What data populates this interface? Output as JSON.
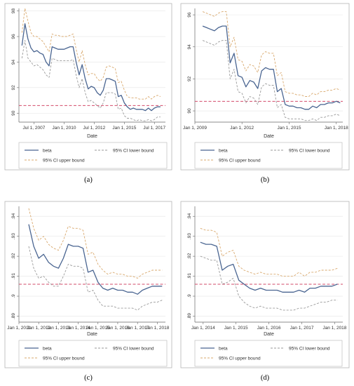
{
  "chart_data": [
    {
      "panel": "a",
      "caption": "(a)",
      "type": "line",
      "xlabel": "Date",
      "xlim": [
        "2006-04-01",
        "2018-06-01"
      ],
      "ylim": [
        89.3,
        98.2
      ],
      "yticks": [
        {
          "v": 90,
          "label": "90"
        },
        {
          "v": 92,
          "label": "92"
        },
        {
          "v": 94,
          "label": "94"
        },
        {
          "v": 96,
          "label": "96"
        },
        {
          "v": 98,
          "label": "98"
        }
      ],
      "xticks": [
        {
          "date": "2007-07-01",
          "label": "Jul 1, 2007"
        },
        {
          "date": "2010-01-01",
          "label": "Jan 1, 2010"
        },
        {
          "date": "2012-07-01",
          "label": "Jul 1, 2012"
        },
        {
          "date": "2015-01-01",
          "label": "Jan 1, 2015"
        },
        {
          "date": "2017-07-01",
          "label": "Jul 1, 2017"
        }
      ],
      "reference_line": 90.6,
      "x": [
        "2006-07-01",
        "2006-10-01",
        "2007-01-01",
        "2007-04-01",
        "2007-07-01",
        "2007-10-01",
        "2008-01-01",
        "2008-04-01",
        "2008-07-01",
        "2008-10-01",
        "2009-01-01",
        "2009-04-01",
        "2009-07-01",
        "2009-10-01",
        "2010-01-01",
        "2010-04-01",
        "2010-07-01",
        "2010-10-01",
        "2011-01-01",
        "2011-04-01",
        "2011-07-01",
        "2011-10-01",
        "2012-01-01",
        "2012-04-01",
        "2012-07-01",
        "2012-10-01",
        "2013-01-01",
        "2013-04-01",
        "2013-07-01",
        "2013-10-01",
        "2014-01-01",
        "2014-04-01",
        "2014-07-01",
        "2014-10-01",
        "2015-01-01",
        "2015-04-01",
        "2015-07-01",
        "2015-10-01",
        "2016-01-01",
        "2016-04-01",
        "2016-07-01",
        "2016-10-01",
        "2017-01-01",
        "2017-04-01",
        "2017-07-01",
        "2017-10-01",
        "2018-01-01"
      ],
      "series": [
        {
          "name": "beta",
          "style": "solid",
          "color": "#4a6591",
          "values": [
            95.3,
            97.0,
            95.8,
            95.1,
            94.8,
            94.9,
            94.7,
            94.6,
            94.0,
            93.7,
            95.2,
            95.1,
            95.0,
            95.0,
            95.0,
            95.1,
            95.2,
            95.2,
            94.0,
            93.0,
            93.8,
            92.7,
            91.9,
            92.1,
            92.0,
            91.6,
            91.4,
            91.8,
            92.7,
            92.7,
            92.6,
            92.5,
            91.3,
            91.4,
            90.8,
            90.5,
            90.3,
            90.4,
            90.3,
            90.3,
            90.3,
            90.2,
            90.4,
            90.2,
            90.4,
            90.5,
            90.5
          ]
        },
        {
          "name": "95% CI lower bound",
          "style": "dash",
          "color": "#9a9a9a",
          "values": [
            94.3,
            95.7,
            94.3,
            94.0,
            93.7,
            93.8,
            93.6,
            93.4,
            93.0,
            92.8,
            94.3,
            94.2,
            94.1,
            94.1,
            94.1,
            94.1,
            94.1,
            94.2,
            93.0,
            92.0,
            92.7,
            91.6,
            90.9,
            91.0,
            90.8,
            90.6,
            90.4,
            90.8,
            91.6,
            91.6,
            91.6,
            91.5,
            90.3,
            90.4,
            89.8,
            89.6,
            89.6,
            89.5,
            89.4,
            89.5,
            89.4,
            89.4,
            89.5,
            89.4,
            89.5,
            89.7,
            89.7
          ]
        },
        {
          "name": "95% CI upper bound",
          "style": "dash",
          "color": "#d9a96e",
          "values": [
            96.3,
            98.2,
            97.2,
            96.3,
            96.0,
            96.0,
            95.8,
            95.6,
            95.2,
            94.8,
            96.2,
            96.1,
            96.1,
            96.0,
            96.0,
            96.0,
            96.1,
            96.2,
            95.0,
            94.0,
            94.9,
            93.8,
            93.0,
            93.1,
            93.1,
            92.7,
            92.5,
            92.8,
            93.6,
            93.7,
            93.6,
            93.5,
            92.4,
            92.5,
            91.8,
            91.3,
            91.2,
            91.2,
            91.2,
            91.1,
            91.1,
            91.1,
            91.3,
            91.1,
            91.3,
            91.4,
            91.3
          ]
        }
      ]
    },
    {
      "panel": "b",
      "caption": "(b)",
      "type": "line",
      "xlabel": "Date",
      "xlim": [
        "2009-01-01",
        "2018-06-01"
      ],
      "ylim": [
        89.3,
        96.4
      ],
      "yticks": [
        {
          "v": 90,
          "label": "90"
        },
        {
          "v": 92,
          "label": "92"
        },
        {
          "v": 94,
          "label": "94"
        },
        {
          "v": 96,
          "label": "96"
        }
      ],
      "xticks": [
        {
          "date": "2009-01-01",
          "label": "Jan 1, 2009"
        },
        {
          "date": "2012-01-01",
          "label": "Jan 1, 2012"
        },
        {
          "date": "2015-01-01",
          "label": "Jan 1, 2015"
        },
        {
          "date": "2018-01-01",
          "label": "Jan 1, 2018"
        }
      ],
      "reference_line": 90.6,
      "x": [
        "2009-07-01",
        "2009-10-01",
        "2010-01-01",
        "2010-04-01",
        "2010-07-01",
        "2010-10-01",
        "2011-01-01",
        "2011-04-01",
        "2011-07-01",
        "2011-10-01",
        "2012-01-01",
        "2012-04-01",
        "2012-07-01",
        "2012-10-01",
        "2013-01-01",
        "2013-04-01",
        "2013-07-01",
        "2013-10-01",
        "2014-01-01",
        "2014-04-01",
        "2014-07-01",
        "2014-10-01",
        "2015-01-01",
        "2015-04-01",
        "2015-07-01",
        "2015-10-01",
        "2016-01-01",
        "2016-04-01",
        "2016-07-01",
        "2016-10-01",
        "2017-01-01",
        "2017-04-01",
        "2017-07-01",
        "2017-10-01",
        "2018-01-01",
        "2018-04-01"
      ],
      "series": [
        {
          "name": "beta",
          "style": "solid",
          "color": "#4a6591",
          "values": [
            95.3,
            95.2,
            95.1,
            95.0,
            95.2,
            95.3,
            95.3,
            93.0,
            93.6,
            92.2,
            92.1,
            91.5,
            91.9,
            91.8,
            91.4,
            92.5,
            92.7,
            92.6,
            92.6,
            91.2,
            91.4,
            90.4,
            90.3,
            90.3,
            90.2,
            90.2,
            90.1,
            90.1,
            90.3,
            90.2,
            90.4,
            90.4,
            90.5,
            90.5,
            90.6,
            90.5
          ]
        },
        {
          "name": "95% CI lower bound",
          "style": "dash",
          "color": "#9a9a9a",
          "values": [
            94.4,
            94.3,
            94.2,
            94.1,
            94.3,
            94.4,
            94.4,
            92.0,
            92.6,
            91.2,
            91.1,
            90.5,
            90.9,
            90.8,
            90.4,
            91.5,
            91.7,
            91.6,
            91.6,
            90.2,
            90.4,
            89.6,
            89.5,
            89.5,
            89.5,
            89.5,
            89.4,
            89.4,
            89.5,
            89.4,
            89.6,
            89.6,
            89.7,
            89.7,
            89.8,
            89.7
          ]
        },
        {
          "name": "95% CI upper bound",
          "style": "dash",
          "color": "#d9a96e",
          "values": [
            96.2,
            96.1,
            96.0,
            95.9,
            96.1,
            96.2,
            96.2,
            94.0,
            94.6,
            93.2,
            93.1,
            92.5,
            92.9,
            92.8,
            92.4,
            93.5,
            93.7,
            93.6,
            93.6,
            92.2,
            92.4,
            91.2,
            91.1,
            91.1,
            91.0,
            91.0,
            90.9,
            90.9,
            91.1,
            91.0,
            91.2,
            91.2,
            91.3,
            91.3,
            91.4,
            91.3
          ]
        }
      ]
    },
    {
      "panel": "c",
      "caption": "(c)",
      "type": "line",
      "xlabel": "Date",
      "xlim": [
        "2011-01-01",
        "2018-06-01"
      ],
      "ylim": [
        0.887,
        0.945
      ],
      "yticks": [
        {
          "v": 0.89,
          "label": ".89"
        },
        {
          "v": 0.9,
          "label": ".9"
        },
        {
          "v": 0.91,
          "label": ".91"
        },
        {
          "v": 0.92,
          "label": ".92"
        },
        {
          "v": 0.93,
          "label": ".93"
        },
        {
          "v": 0.94,
          "label": ".94"
        }
      ],
      "xticks": [
        {
          "date": "2011-01-01",
          "label": "Jan 1, 2011"
        },
        {
          "date": "2012-01-01",
          "label": "Jan 1, 2012"
        },
        {
          "date": "2013-01-01",
          "label": "Jan 1, 2013"
        },
        {
          "date": "2014-01-01",
          "label": "Jan 1, 2014"
        },
        {
          "date": "2015-01-01",
          "label": "Jan 1, 2015"
        },
        {
          "date": "2016-01-01",
          "label": "Jan 1, 2016"
        },
        {
          "date": "2017-01-01",
          "label": "Jan 1, 2017"
        },
        {
          "date": "2018-01-01",
          "label": "Jan 1, 2018"
        }
      ],
      "reference_line": 0.906,
      "x": [
        "2011-07-01",
        "2011-10-01",
        "2012-01-01",
        "2012-04-01",
        "2012-07-01",
        "2012-10-01",
        "2013-01-01",
        "2013-04-01",
        "2013-07-01",
        "2013-10-01",
        "2014-01-01",
        "2014-04-01",
        "2014-07-01",
        "2014-10-01",
        "2015-01-01",
        "2015-04-01",
        "2015-07-01",
        "2015-10-01",
        "2016-01-01",
        "2016-04-01",
        "2016-07-01",
        "2016-10-01",
        "2017-01-01",
        "2017-04-01",
        "2017-07-01",
        "2017-10-01",
        "2018-01-01",
        "2018-04-01"
      ],
      "series": [
        {
          "name": "beta",
          "style": "solid",
          "color": "#4a6591",
          "values": [
            0.936,
            0.925,
            0.919,
            0.921,
            0.917,
            0.915,
            0.914,
            0.919,
            0.926,
            0.925,
            0.925,
            0.924,
            0.912,
            0.913,
            0.907,
            0.904,
            0.903,
            0.904,
            0.903,
            0.903,
            0.902,
            0.902,
            0.901,
            0.903,
            0.904,
            0.905,
            0.905,
            0.905
          ]
        },
        {
          "name": "95% CI lower bound",
          "style": "dash",
          "color": "#9a9a9a",
          "values": [
            0.925,
            0.914,
            0.909,
            0.91,
            0.907,
            0.905,
            0.905,
            0.91,
            0.916,
            0.915,
            0.915,
            0.914,
            0.902,
            0.903,
            0.898,
            0.895,
            0.895,
            0.895,
            0.894,
            0.894,
            0.894,
            0.894,
            0.893,
            0.895,
            0.896,
            0.897,
            0.897,
            0.898
          ]
        },
        {
          "name": "95% CI upper bound",
          "style": "dash",
          "color": "#d9a96e",
          "values": [
            0.944,
            0.934,
            0.928,
            0.93,
            0.926,
            0.924,
            0.923,
            0.928,
            0.935,
            0.934,
            0.934,
            0.933,
            0.921,
            0.922,
            0.916,
            0.913,
            0.911,
            0.912,
            0.911,
            0.911,
            0.91,
            0.91,
            0.909,
            0.911,
            0.912,
            0.913,
            0.913,
            0.913
          ]
        }
      ]
    },
    {
      "panel": "d",
      "caption": "(d)",
      "type": "line",
      "xlabel": "Date",
      "xlim": [
        "2013-10-01",
        "2018-04-01"
      ],
      "ylim": [
        0.887,
        0.945
      ],
      "yticks": [
        {
          "v": 0.89,
          "label": ".89"
        },
        {
          "v": 0.9,
          "label": ".9"
        },
        {
          "v": 0.91,
          "label": ".91"
        },
        {
          "v": 0.92,
          "label": ".92"
        },
        {
          "v": 0.93,
          "label": ".93"
        },
        {
          "v": 0.94,
          "label": ".94"
        }
      ],
      "xticks": [
        {
          "date": "2014-01-01",
          "label": "Jan 1, 2014"
        },
        {
          "date": "2015-01-01",
          "label": "Jan 1, 2015"
        },
        {
          "date": "2016-01-01",
          "label": "Jan 1, 2016"
        },
        {
          "date": "2017-01-01",
          "label": "Jan 1, 2017"
        },
        {
          "date": "2018-01-01",
          "label": "Jan 1, 2018"
        }
      ],
      "reference_line": 0.906,
      "x": [
        "2013-12-01",
        "2014-02-01",
        "2014-04-01",
        "2014-06-01",
        "2014-08-01",
        "2014-10-01",
        "2014-12-01",
        "2015-02-01",
        "2015-04-01",
        "2015-06-01",
        "2015-08-01",
        "2015-10-01",
        "2015-12-01",
        "2016-02-01",
        "2016-04-01",
        "2016-06-01",
        "2016-08-01",
        "2016-10-01",
        "2016-12-01",
        "2017-02-01",
        "2017-04-01",
        "2017-06-01",
        "2017-08-01",
        "2017-10-01",
        "2017-12-01",
        "2018-02-01"
      ],
      "series": [
        {
          "name": "beta",
          "style": "solid",
          "color": "#4a6591",
          "values": [
            0.927,
            0.926,
            0.926,
            0.925,
            0.913,
            0.915,
            0.916,
            0.908,
            0.906,
            0.904,
            0.903,
            0.904,
            0.903,
            0.903,
            0.903,
            0.902,
            0.902,
            0.902,
            0.903,
            0.902,
            0.904,
            0.904,
            0.905,
            0.905,
            0.905,
            0.906
          ]
        },
        {
          "name": "95% CI lower bound",
          "style": "dash",
          "color": "#9a9a9a",
          "values": [
            0.92,
            0.919,
            0.918,
            0.918,
            0.906,
            0.907,
            0.909,
            0.9,
            0.897,
            0.895,
            0.894,
            0.895,
            0.894,
            0.894,
            0.894,
            0.893,
            0.893,
            0.893,
            0.894,
            0.894,
            0.895,
            0.896,
            0.897,
            0.897,
            0.898,
            0.898
          ]
        },
        {
          "name": "95% CI upper bound",
          "style": "dash",
          "color": "#d9a96e",
          "values": [
            0.934,
            0.933,
            0.933,
            0.932,
            0.92,
            0.922,
            0.923,
            0.915,
            0.913,
            0.912,
            0.911,
            0.912,
            0.911,
            0.911,
            0.911,
            0.91,
            0.91,
            0.91,
            0.912,
            0.91,
            0.912,
            0.912,
            0.913,
            0.913,
            0.913,
            0.914
          ]
        }
      ]
    }
  ],
  "colors": {
    "beta": "#4a6591",
    "lower": "#9a9a9a",
    "upper": "#d9a96e",
    "reference": "#d24a6a",
    "grid": "#e6e6e6",
    "frame": "#b5b5b5"
  }
}
